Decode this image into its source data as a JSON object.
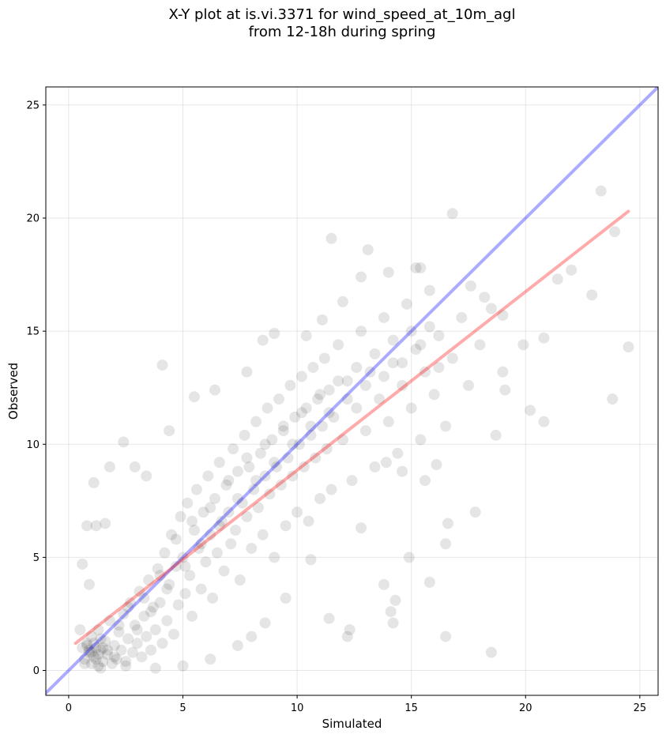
{
  "chart_data": {
    "type": "scatter",
    "title_lines": [
      "X-Y plot at is.vi.3371 for wind_speed_at_10m_agl",
      "from 12-18h during spring"
    ],
    "xlabel": "Simulated",
    "ylabel": "Observed",
    "xlim": [
      -1,
      25.8
    ],
    "ylim": [
      -1.1,
      25.8
    ],
    "xticks": [
      0,
      5,
      10,
      15,
      20,
      25
    ],
    "yticks": [
      0,
      5,
      10,
      15,
      20,
      25
    ],
    "grid": true,
    "point_color": "#000000",
    "point_opacity": 0.1,
    "identity_line": {
      "color": "#0000ff",
      "opacity": 0.33,
      "slope": 1,
      "intercept": 0
    },
    "fit_line": {
      "color": "#ff0000",
      "opacity": 0.33,
      "x": [
        0.3,
        24.5
      ],
      "y": [
        1.2,
        20.3
      ]
    },
    "series": [
      {
        "points": [
          [
            0.5,
            1.8
          ],
          [
            0.6,
            1.0
          ],
          [
            0.7,
            0.5
          ],
          [
            0.8,
            1.2
          ],
          [
            0.9,
            0.8
          ],
          [
            1.0,
            0.3
          ],
          [
            1.0,
            1.5
          ],
          [
            1.1,
            0.6
          ],
          [
            1.2,
            1.0
          ],
          [
            1.3,
            0.2
          ],
          [
            1.3,
            1.8
          ],
          [
            1.4,
            0.9
          ],
          [
            1.5,
            0.4
          ],
          [
            1.6,
            1.3
          ],
          [
            1.7,
            0.7
          ],
          [
            1.8,
            2.2
          ],
          [
            1.9,
            0.3
          ],
          [
            2.0,
            1.1
          ],
          [
            2.1,
            0.5
          ],
          [
            2.2,
            1.7
          ],
          [
            2.3,
            0.9
          ],
          [
            2.4,
            2.5
          ],
          [
            2.5,
            0.4
          ],
          [
            2.6,
            1.4
          ],
          [
            2.7,
            3.0
          ],
          [
            2.8,
            0.8
          ],
          [
            2.9,
            2.0
          ],
          [
            3.0,
            1.2
          ],
          [
            3.1,
            3.5
          ],
          [
            3.2,
            0.6
          ],
          [
            3.3,
            2.4
          ],
          [
            3.4,
            1.5
          ],
          [
            3.5,
            4.0
          ],
          [
            3.6,
            0.9
          ],
          [
            3.7,
            2.8
          ],
          [
            3.8,
            1.8
          ],
          [
            3.9,
            4.5
          ],
          [
            4.0,
            3.0
          ],
          [
            4.1,
            1.2
          ],
          [
            4.2,
            5.2
          ],
          [
            4.3,
            2.2
          ],
          [
            4.4,
            3.8
          ],
          [
            4.5,
            6.0
          ],
          [
            4.6,
            1.6
          ],
          [
            4.7,
            4.6
          ],
          [
            4.8,
            2.9
          ],
          [
            4.9,
            6.8
          ],
          [
            5.0,
            5.0
          ],
          [
            5.1,
            3.4
          ],
          [
            5.2,
            7.4
          ],
          [
            5.3,
            4.2
          ],
          [
            5.4,
            2.4
          ],
          [
            5.5,
            6.2
          ],
          [
            5.6,
            8.0
          ],
          [
            5.7,
            5.4
          ],
          [
            5.8,
            3.6
          ],
          [
            5.9,
            7.0
          ],
          [
            6.0,
            4.8
          ],
          [
            6.1,
            8.6
          ],
          [
            6.2,
            6.0
          ],
          [
            6.3,
            3.2
          ],
          [
            6.4,
            7.6
          ],
          [
            6.5,
            5.2
          ],
          [
            6.6,
            9.2
          ],
          [
            6.7,
            6.6
          ],
          [
            6.8,
            4.4
          ],
          [
            6.9,
            8.2
          ],
          [
            7.0,
            7.0
          ],
          [
            7.1,
            5.6
          ],
          [
            7.2,
            9.8
          ],
          [
            7.3,
            6.2
          ],
          [
            7.4,
            8.8
          ],
          [
            7.5,
            4.0
          ],
          [
            7.6,
            7.4
          ],
          [
            7.7,
            10.4
          ],
          [
            7.8,
            6.8
          ],
          [
            7.9,
            9.0
          ],
          [
            8.0,
            5.4
          ],
          [
            8.1,
            8.0
          ],
          [
            8.2,
            11.0
          ],
          [
            8.3,
            7.2
          ],
          [
            8.4,
            9.6
          ],
          [
            8.5,
            6.0
          ],
          [
            8.6,
            8.6
          ],
          [
            8.7,
            11.6
          ],
          [
            8.8,
            7.8
          ],
          [
            8.9,
            10.2
          ],
          [
            9.0,
            5.0
          ],
          [
            9.1,
            9.0
          ],
          [
            9.2,
            12.0
          ],
          [
            9.3,
            8.2
          ],
          [
            9.4,
            10.8
          ],
          [
            9.5,
            6.4
          ],
          [
            9.6,
            9.4
          ],
          [
            9.7,
            12.6
          ],
          [
            9.8,
            8.6
          ],
          [
            9.9,
            11.2
          ],
          [
            10.0,
            7.0
          ],
          [
            10.1,
            10.0
          ],
          [
            10.2,
            13.0
          ],
          [
            10.3,
            9.0
          ],
          [
            10.4,
            11.6
          ],
          [
            10.5,
            6.6
          ],
          [
            10.6,
            10.4
          ],
          [
            10.7,
            13.4
          ],
          [
            10.8,
            9.4
          ],
          [
            10.9,
            12.0
          ],
          [
            11.0,
            7.6
          ],
          [
            11.1,
            10.8
          ],
          [
            11.2,
            13.8
          ],
          [
            11.3,
            9.8
          ],
          [
            11.4,
            12.4
          ],
          [
            11.5,
            8.0
          ],
          [
            11.6,
            11.2
          ],
          [
            11.8,
            14.4
          ],
          [
            12.0,
            10.2
          ],
          [
            12.2,
            12.8
          ],
          [
            12.4,
            8.4
          ],
          [
            12.6,
            11.6
          ],
          [
            12.8,
            15.0
          ],
          [
            13.0,
            10.6
          ],
          [
            13.2,
            13.2
          ],
          [
            13.4,
            9.0
          ],
          [
            13.6,
            12.0
          ],
          [
            13.8,
            15.6
          ],
          [
            14.0,
            11.0
          ],
          [
            14.2,
            13.6
          ],
          [
            14.4,
            9.6
          ],
          [
            14.6,
            12.6
          ],
          [
            14.8,
            16.2
          ],
          [
            15.0,
            11.6
          ],
          [
            15.2,
            14.2
          ],
          [
            15.4,
            10.2
          ],
          [
            15.6,
            13.2
          ],
          [
            15.8,
            16.8
          ],
          [
            16.0,
            12.2
          ],
          [
            16.2,
            14.8
          ],
          [
            16.5,
            10.8
          ],
          [
            16.8,
            13.8
          ],
          [
            17.2,
            15.6
          ],
          [
            17.5,
            12.6
          ],
          [
            18.0,
            14.4
          ],
          [
            18.5,
            16.0
          ],
          [
            19.0,
            13.2
          ],
          [
            11.5,
            19.1
          ],
          [
            13.1,
            18.6
          ],
          [
            15.2,
            17.8
          ],
          [
            16.8,
            20.2
          ],
          [
            23.3,
            21.2
          ],
          [
            23.9,
            19.4
          ],
          [
            22.9,
            16.6
          ],
          [
            21.4,
            17.3
          ],
          [
            20.8,
            14.7
          ],
          [
            24.5,
            14.3
          ],
          [
            23.8,
            12.0
          ],
          [
            19.9,
            14.4
          ],
          [
            20.2,
            11.5
          ],
          [
            20.8,
            11.0
          ],
          [
            19.1,
            12.4
          ],
          [
            18.7,
            10.4
          ],
          [
            17.8,
            7.0
          ],
          [
            16.6,
            6.5
          ],
          [
            16.5,
            5.6
          ],
          [
            16.5,
            1.5
          ],
          [
            18.5,
            0.8
          ],
          [
            15.8,
            3.9
          ],
          [
            14.9,
            5.0
          ],
          [
            14.3,
            3.1
          ],
          [
            13.8,
            3.8
          ],
          [
            12.2,
            1.5
          ],
          [
            12.3,
            1.8
          ],
          [
            11.4,
            2.3
          ],
          [
            14.2,
            2.1
          ],
          [
            14.1,
            2.6
          ],
          [
            4.1,
            13.5
          ],
          [
            2.4,
            10.1
          ],
          [
            1.1,
            8.3
          ],
          [
            1.8,
            9.0
          ],
          [
            0.8,
            6.4
          ],
          [
            1.2,
            6.4
          ],
          [
            0.6,
            4.7
          ],
          [
            0.9,
            3.8
          ],
          [
            1.6,
            6.5
          ],
          [
            2.9,
            9.0
          ],
          [
            3.4,
            8.6
          ],
          [
            4.4,
            10.6
          ],
          [
            5.5,
            12.1
          ],
          [
            6.4,
            12.4
          ],
          [
            7.8,
            13.2
          ],
          [
            8.5,
            14.6
          ],
          [
            9.0,
            14.9
          ],
          [
            10.4,
            14.8
          ],
          [
            11.1,
            15.5
          ],
          [
            12.0,
            16.3
          ],
          [
            12.8,
            17.4
          ],
          [
            14.0,
            17.6
          ],
          [
            15.4,
            17.8
          ],
          [
            17.6,
            17.0
          ],
          [
            18.2,
            16.5
          ],
          [
            19.0,
            15.7
          ],
          [
            22.0,
            17.7
          ],
          [
            14.6,
            8.8
          ],
          [
            13.9,
            9.2
          ],
          [
            15.6,
            8.4
          ],
          [
            16.1,
            9.1
          ],
          [
            12.8,
            6.3
          ],
          [
            10.6,
            4.9
          ],
          [
            9.5,
            3.2
          ],
          [
            8.6,
            2.1
          ],
          [
            8.0,
            1.5
          ],
          [
            7.4,
            1.1
          ],
          [
            6.2,
            0.5
          ],
          [
            5.0,
            0.2
          ],
          [
            3.8,
            0.1
          ],
          [
            2.5,
            0.2
          ],
          [
            1.4,
            0.1
          ],
          [
            0.9,
            0.9
          ],
          [
            1.1,
            1.2
          ],
          [
            1.3,
            0.7
          ],
          [
            0.8,
            1.1
          ],
          [
            1.5,
            1.0
          ],
          [
            1.2,
            0.5
          ],
          [
            1.0,
            0.8
          ],
          [
            1.4,
            1.4
          ],
          [
            1.7,
            0.9
          ],
          [
            0.7,
            0.3
          ],
          [
            2.0,
            0.6
          ],
          [
            2.2,
            2.0
          ],
          [
            2.6,
            2.8
          ],
          [
            3.0,
            1.8
          ],
          [
            3.3,
            3.2
          ],
          [
            3.6,
            2.6
          ],
          [
            4.0,
            4.2
          ],
          [
            4.3,
            3.6
          ],
          [
            4.7,
            5.8
          ],
          [
            5.1,
            4.6
          ],
          [
            5.4,
            6.6
          ],
          [
            5.8,
            5.6
          ],
          [
            6.2,
            7.2
          ],
          [
            6.6,
            6.4
          ],
          [
            7.0,
            8.4
          ],
          [
            7.4,
            7.6
          ],
          [
            7.8,
            9.4
          ],
          [
            8.2,
            8.4
          ],
          [
            8.6,
            10.0
          ],
          [
            9.0,
            9.2
          ],
          [
            9.4,
            10.6
          ],
          [
            9.8,
            10.0
          ],
          [
            10.2,
            11.4
          ],
          [
            10.6,
            10.8
          ],
          [
            11.0,
            12.2
          ],
          [
            11.4,
            11.4
          ],
          [
            11.8,
            12.8
          ],
          [
            12.2,
            12.0
          ],
          [
            12.6,
            13.4
          ],
          [
            13.0,
            12.6
          ],
          [
            13.4,
            14.0
          ],
          [
            13.8,
            13.0
          ],
          [
            14.2,
            14.6
          ],
          [
            14.6,
            13.6
          ],
          [
            15.0,
            15.0
          ],
          [
            15.4,
            14.4
          ],
          [
            15.8,
            15.2
          ],
          [
            16.2,
            13.4
          ]
        ]
      }
    ]
  }
}
